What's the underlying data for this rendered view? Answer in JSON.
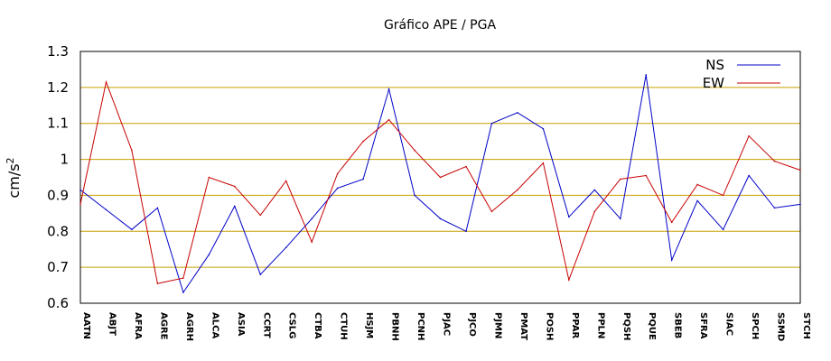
{
  "chart_data": {
    "type": "line",
    "title": "Gráfico  APE / PGA",
    "ylabel": "cm/s",
    "ylabel_superscript": "2",
    "xlabel": "",
    "ylim": [
      0.6,
      1.3
    ],
    "yticks": [
      "0.6",
      "0.7",
      "0.8",
      "0.9",
      "1",
      "1.1",
      "1.2",
      "1.3"
    ],
    "grid": "horizontal",
    "grid_color": "#c8a000",
    "legend_position": "top-right",
    "categories": [
      "AATN",
      "ABJT",
      "AFRA",
      "AGRE",
      "AGRH",
      "ALCA",
      "ASIA",
      "CCRT",
      "CSLG",
      "CTBA",
      "CTUH",
      "HSJM",
      "PBNH",
      "PCNH",
      "PJAC",
      "PJCO",
      "PJMN",
      "PMAT",
      "POSH",
      "PPAR",
      "PPLN",
      "PQSH",
      "PQUE",
      "SBEB",
      "SFRA",
      "SIAC",
      "SPCH",
      "SSMD",
      "STCH"
    ],
    "series": [
      {
        "name": "NS",
        "color": "#0000c8",
        "values": [
          0.915,
          0.86,
          0.805,
          0.865,
          0.63,
          0.735,
          0.87,
          0.68,
          0.755,
          0.835,
          0.92,
          0.945,
          1.195,
          0.9,
          0.835,
          0.8,
          1.1,
          1.13,
          1.085,
          0.84,
          0.915,
          0.835,
          1.235,
          0.72,
          0.885,
          0.805,
          0.955,
          0.865,
          0.875
        ]
      },
      {
        "name": "EW",
        "color": "#c80000",
        "values": [
          0.875,
          1.215,
          1.025,
          0.655,
          0.67,
          0.95,
          0.925,
          0.845,
          0.94,
          0.77,
          0.96,
          1.05,
          1.11,
          1.025,
          0.95,
          0.98,
          0.855,
          0.915,
          0.99,
          0.665,
          0.855,
          0.945,
          0.955,
          0.825,
          0.93,
          0.9,
          1.065,
          0.995,
          0.97
        ]
      }
    ]
  }
}
